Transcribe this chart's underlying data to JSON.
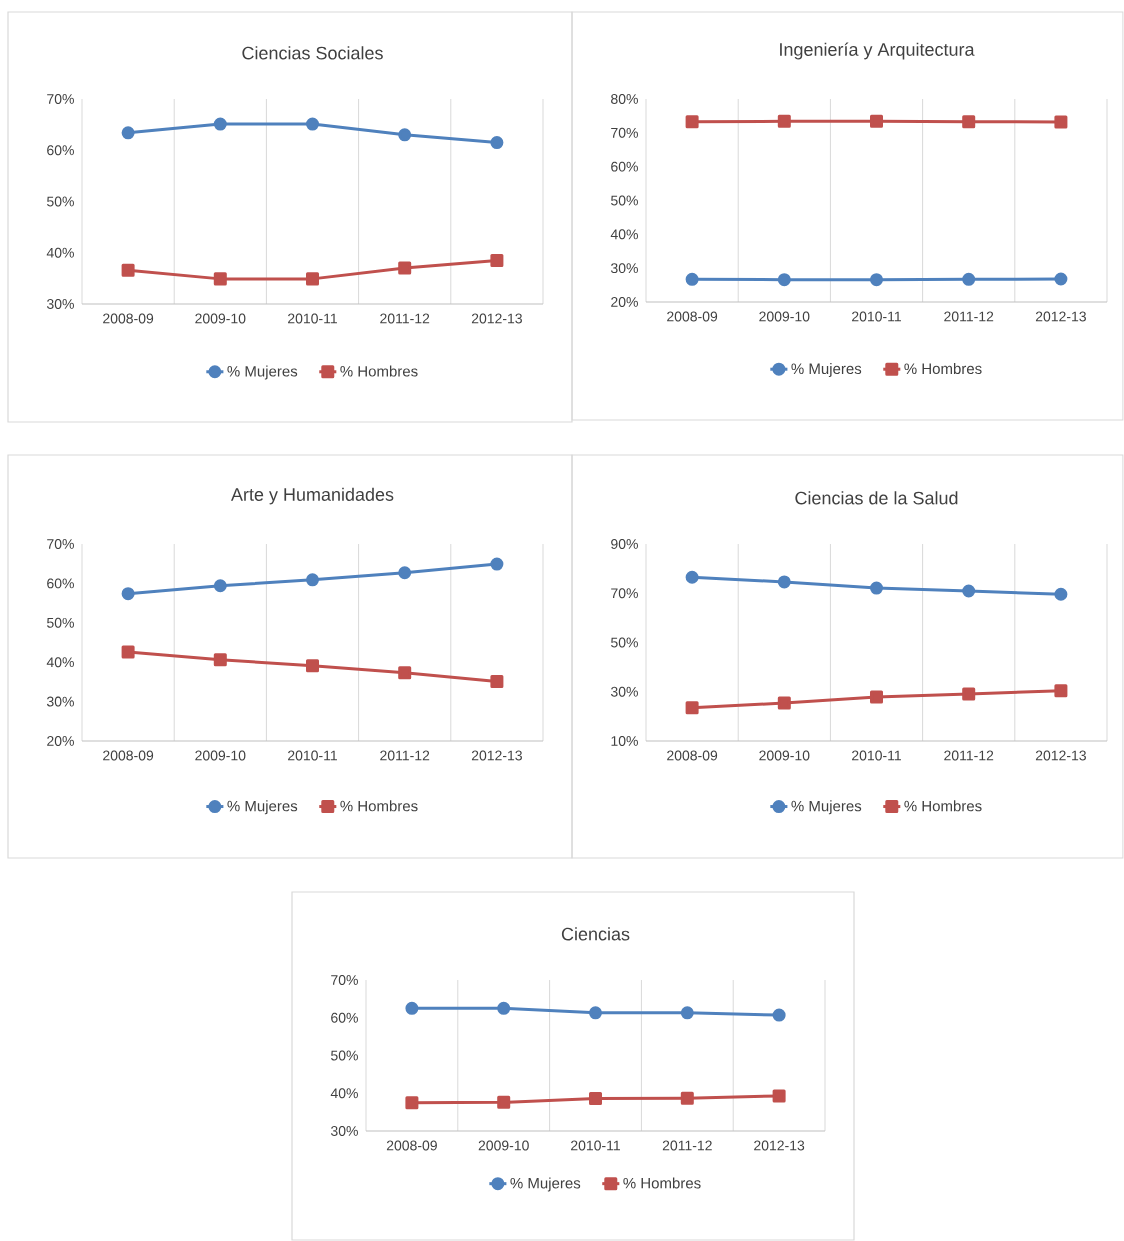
{
  "chart_data": [
    {
      "type": "line",
      "title": "Ciencias Sociales",
      "categories": [
        "2008-09",
        "2009-10",
        "2010-11",
        "2011-12",
        "2012-13"
      ],
      "ylim": [
        30,
        70
      ],
      "yticks": [
        {
          "value": 30,
          "label": "30%"
        },
        {
          "value": 40,
          "label": "40%"
        },
        {
          "value": 50,
          "label": "50%"
        },
        {
          "value": 60,
          "label": "60%"
        },
        {
          "value": 70,
          "label": "70%"
        }
      ],
      "grid": "x",
      "legend": "bottom",
      "series": [
        {
          "name": "% Mujeres",
          "color": "#4f81bd",
          "marker": "circle",
          "values": [
            63.4,
            65.1,
            65.1,
            63.0,
            61.5
          ]
        },
        {
          "name": "% Hombres",
          "color": "#c0504d",
          "marker": "square",
          "values": [
            36.6,
            34.9,
            34.9,
            37.0,
            38.5
          ]
        }
      ]
    },
    {
      "type": "line",
      "title": "Ingeniería y Arquitectura",
      "categories": [
        "2008-09",
        "2009-10",
        "2010-11",
        "2011-12",
        "2012-13"
      ],
      "ylim": [
        20,
        80
      ],
      "yticks": [
        {
          "value": 20,
          "label": "20%"
        },
        {
          "value": 30,
          "label": "30%"
        },
        {
          "value": 40,
          "label": "40%"
        },
        {
          "value": 50,
          "label": "50%"
        },
        {
          "value": 60,
          "label": "60%"
        },
        {
          "value": 70,
          "label": "70%"
        },
        {
          "value": 80,
          "label": "80%"
        }
      ],
      "grid": "x",
      "legend": "bottom",
      "series": [
        {
          "name": "% Mujeres",
          "color": "#4f81bd",
          "marker": "circle",
          "values": [
            26.7,
            26.6,
            26.6,
            26.7,
            26.8
          ]
        },
        {
          "name": "% Hombres",
          "color": "#c0504d",
          "marker": "square",
          "values": [
            73.3,
            73.4,
            73.4,
            73.3,
            73.2
          ]
        }
      ]
    },
    {
      "type": "line",
      "title": "Arte y Humanidades",
      "categories": [
        "2008-09",
        "2009-10",
        "2010-11",
        "2011-12",
        "2012-13"
      ],
      "ylim": [
        20,
        70
      ],
      "yticks": [
        {
          "value": 20,
          "label": "20%"
        },
        {
          "value": 30,
          "label": "30%"
        },
        {
          "value": 40,
          "label": "40%"
        },
        {
          "value": 50,
          "label": "50%"
        },
        {
          "value": 60,
          "label": "60%"
        },
        {
          "value": 70,
          "label": "70%"
        }
      ],
      "grid": "x",
      "legend": "bottom",
      "series": [
        {
          "name": "% Mujeres",
          "color": "#4f81bd",
          "marker": "circle",
          "values": [
            57.4,
            59.4,
            60.9,
            62.7,
            64.9
          ]
        },
        {
          "name": "% Hombres",
          "color": "#c0504d",
          "marker": "square",
          "values": [
            42.6,
            40.6,
            39.1,
            37.3,
            35.1
          ]
        }
      ]
    },
    {
      "type": "line",
      "title": "Ciencias de la Salud",
      "categories": [
        "2008-09",
        "2009-10",
        "2010-11",
        "2011-12",
        "2012-13"
      ],
      "ylim": [
        10,
        90
      ],
      "yticks": [
        {
          "value": 10,
          "label": "10%"
        },
        {
          "value": 30,
          "label": "30%"
        },
        {
          "value": 50,
          "label": "50%"
        },
        {
          "value": 70,
          "label": "70%"
        },
        {
          "value": 90,
          "label": "90%"
        }
      ],
      "grid": "x",
      "legend": "bottom",
      "series": [
        {
          "name": "% Mujeres",
          "color": "#4f81bd",
          "marker": "circle",
          "values": [
            76.5,
            74.6,
            72.1,
            70.9,
            69.6
          ]
        },
        {
          "name": "% Hombres",
          "color": "#c0504d",
          "marker": "square",
          "values": [
            23.5,
            25.4,
            27.9,
            29.1,
            30.4
          ]
        }
      ]
    },
    {
      "type": "line",
      "title": "Ciencias",
      "categories": [
        "2008-09",
        "2009-10",
        "2010-11",
        "2011-12",
        "2012-13"
      ],
      "ylim": [
        30,
        70
      ],
      "yticks": [
        {
          "value": 30,
          "label": "30%"
        },
        {
          "value": 40,
          "label": "40%"
        },
        {
          "value": 50,
          "label": "50%"
        },
        {
          "value": 60,
          "label": "60%"
        },
        {
          "value": 70,
          "label": "70%"
        }
      ],
      "grid": "x",
      "legend": "bottom",
      "series": [
        {
          "name": "% Mujeres",
          "color": "#4f81bd",
          "marker": "circle",
          "values": [
            62.5,
            62.5,
            61.3,
            61.3,
            60.7
          ]
        },
        {
          "name": "% Hombres",
          "color": "#c0504d",
          "marker": "square",
          "values": [
            37.5,
            37.6,
            38.6,
            38.7,
            39.3
          ]
        }
      ]
    }
  ]
}
